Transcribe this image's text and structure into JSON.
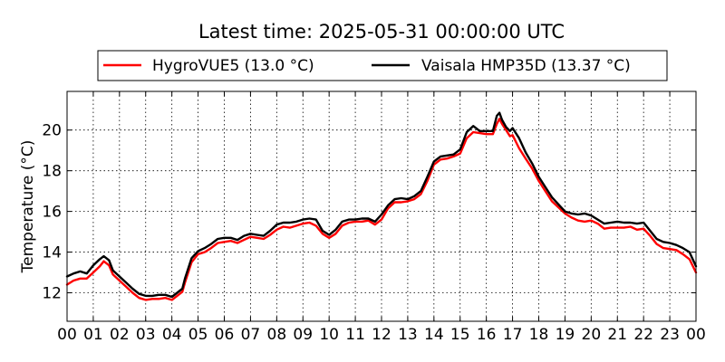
{
  "chart_data": {
    "type": "line",
    "title": "Latest time: 2025-05-31 00:00:00 UTC",
    "xlabel": "",
    "ylabel": "Temperature (°C)",
    "xlim": [
      0,
      24
    ],
    "ylim": [
      10.6,
      21.9
    ],
    "x_ticks": [
      0,
      1,
      2,
      3,
      4,
      5,
      6,
      7,
      8,
      9,
      10,
      11,
      12,
      13,
      14,
      15,
      16,
      17,
      18,
      19,
      20,
      21,
      22,
      23,
      24
    ],
    "x_tick_labels": [
      "00",
      "01",
      "02",
      "03",
      "04",
      "05",
      "06",
      "07",
      "08",
      "09",
      "10",
      "11",
      "12",
      "13",
      "14",
      "15",
      "16",
      "17",
      "18",
      "19",
      "20",
      "21",
      "22",
      "23",
      "00"
    ],
    "y_ticks": [
      12,
      14,
      16,
      18,
      20
    ],
    "y_tick_labels": [
      "12",
      "14",
      "16",
      "18",
      "20"
    ],
    "grid": true,
    "legend_position": "top",
    "series": [
      {
        "name": "HygroVUE5 (13.0 °C)",
        "color": "#ff0000",
        "x": [
          0,
          0.25,
          0.5,
          0.75,
          1,
          1.25,
          1.4,
          1.6,
          1.75,
          2,
          2.25,
          2.5,
          2.75,
          3,
          3.25,
          3.5,
          3.75,
          4,
          4.2,
          4.4,
          4.5,
          4.75,
          5,
          5.25,
          5.5,
          5.75,
          6,
          6.25,
          6.5,
          6.75,
          7,
          7.25,
          7.5,
          7.75,
          8,
          8.25,
          8.5,
          8.75,
          9,
          9.25,
          9.5,
          9.75,
          10,
          10.25,
          10.5,
          10.75,
          11,
          11.25,
          11.5,
          11.75,
          12,
          12.25,
          12.5,
          12.75,
          13,
          13.25,
          13.5,
          13.75,
          14,
          14.25,
          14.5,
          14.75,
          15,
          15.25,
          15.5,
          15.75,
          16,
          16.25,
          16.4,
          16.5,
          16.6,
          16.75,
          16.9,
          17,
          17.25,
          17.5,
          17.75,
          18,
          18.25,
          18.5,
          18.75,
          19,
          19.25,
          19.5,
          19.75,
          20,
          20.25,
          20.5,
          20.75,
          21,
          21.25,
          21.5,
          21.75,
          22,
          22.25,
          22.5,
          22.75,
          23,
          23.25,
          23.5,
          23.75,
          24
        ],
        "values": [
          12.4,
          12.6,
          12.7,
          12.7,
          13.0,
          13.3,
          13.55,
          13.35,
          12.9,
          12.6,
          12.3,
          12.0,
          11.75,
          11.65,
          11.7,
          11.7,
          11.75,
          11.65,
          11.85,
          12.05,
          12.5,
          13.5,
          13.9,
          14.0,
          14.2,
          14.45,
          14.5,
          14.55,
          14.45,
          14.6,
          14.75,
          14.7,
          14.65,
          14.85,
          15.1,
          15.25,
          15.2,
          15.3,
          15.4,
          15.45,
          15.3,
          14.9,
          14.7,
          14.9,
          15.3,
          15.45,
          15.5,
          15.5,
          15.55,
          15.35,
          15.6,
          16.15,
          16.45,
          16.45,
          16.5,
          16.6,
          16.85,
          17.5,
          18.3,
          18.55,
          18.6,
          18.7,
          18.85,
          19.6,
          19.9,
          19.85,
          19.8,
          19.8,
          20.3,
          20.55,
          20.3,
          20.0,
          19.7,
          19.75,
          19.1,
          18.6,
          18.1,
          17.5,
          17.0,
          16.5,
          16.2,
          15.9,
          15.7,
          15.55,
          15.5,
          15.55,
          15.4,
          15.15,
          15.2,
          15.2,
          15.2,
          15.25,
          15.1,
          15.15,
          14.8,
          14.4,
          14.2,
          14.15,
          14.1,
          13.9,
          13.65,
          13.0
        ]
      },
      {
        "name": "Vaisala HMP35D (13.37 °C)",
        "color": "#000000",
        "x": [
          0,
          0.25,
          0.5,
          0.75,
          1,
          1.25,
          1.4,
          1.6,
          1.75,
          2,
          2.25,
          2.5,
          2.75,
          3,
          3.25,
          3.5,
          3.75,
          4,
          4.2,
          4.4,
          4.5,
          4.75,
          5,
          5.25,
          5.5,
          5.75,
          6,
          6.25,
          6.5,
          6.75,
          7,
          7.25,
          7.5,
          7.75,
          8,
          8.25,
          8.5,
          8.75,
          9,
          9.25,
          9.5,
          9.75,
          10,
          10.25,
          10.5,
          10.75,
          11,
          11.25,
          11.5,
          11.75,
          12,
          12.25,
          12.5,
          12.75,
          13,
          13.25,
          13.5,
          13.75,
          14,
          14.25,
          14.5,
          14.75,
          15,
          15.25,
          15.5,
          15.75,
          16,
          16.25,
          16.4,
          16.5,
          16.6,
          16.75,
          16.9,
          17,
          17.25,
          17.5,
          17.75,
          18,
          18.25,
          18.5,
          18.75,
          19,
          19.25,
          19.5,
          19.75,
          20,
          20.25,
          20.5,
          20.75,
          21,
          21.25,
          21.5,
          21.75,
          22,
          22.25,
          22.5,
          22.75,
          23,
          23.25,
          23.5,
          23.75,
          24
        ],
        "values": [
          12.8,
          12.95,
          13.05,
          12.95,
          13.35,
          13.65,
          13.8,
          13.6,
          13.1,
          12.8,
          12.5,
          12.2,
          11.95,
          11.85,
          11.85,
          11.9,
          11.9,
          11.8,
          12.0,
          12.2,
          12.7,
          13.7,
          14.05,
          14.2,
          14.4,
          14.65,
          14.7,
          14.7,
          14.6,
          14.8,
          14.9,
          14.85,
          14.8,
          15.05,
          15.35,
          15.45,
          15.45,
          15.5,
          15.6,
          15.65,
          15.6,
          15.05,
          14.85,
          15.1,
          15.5,
          15.6,
          15.6,
          15.65,
          15.65,
          15.5,
          15.85,
          16.3,
          16.6,
          16.65,
          16.6,
          16.75,
          17.0,
          17.7,
          18.45,
          18.7,
          18.75,
          18.8,
          19.05,
          19.9,
          20.2,
          19.95,
          19.95,
          19.95,
          20.7,
          20.85,
          20.5,
          20.15,
          19.95,
          20.1,
          19.6,
          18.9,
          18.35,
          17.7,
          17.2,
          16.7,
          16.35,
          16.0,
          15.9,
          15.85,
          15.9,
          15.8,
          15.6,
          15.4,
          15.45,
          15.5,
          15.45,
          15.45,
          15.4,
          15.45,
          15.05,
          14.65,
          14.5,
          14.45,
          14.35,
          14.2,
          14.0,
          13.3
        ]
      }
    ]
  }
}
